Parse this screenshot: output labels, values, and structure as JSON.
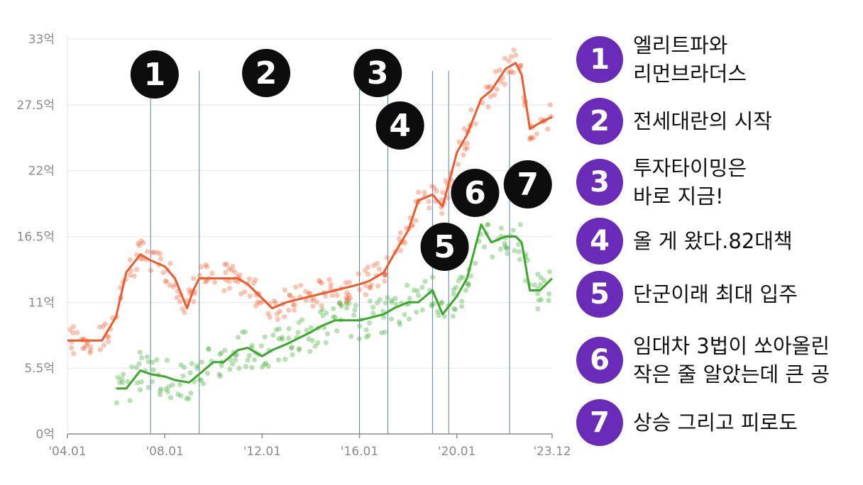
{
  "chart_data": {
    "type": "line",
    "x_ticks": [
      "'04.01",
      "'08.01",
      "'12.01",
      "'16.01",
      "'20.01",
      "'23.12"
    ],
    "y_ticks": [
      "0억",
      "5.5억",
      "11억",
      "16.5억",
      "22억",
      "27.5억",
      "33억"
    ],
    "ylim": [
      0,
      33
    ],
    "xlim": [
      "2004-01",
      "2023-12"
    ],
    "grid": true,
    "series": [
      {
        "color": "#f05a2a",
        "x": [
          "2004-01",
          "2005-06",
          "2006-01",
          "2006-06",
          "2007-01",
          "2007-06",
          "2008-01",
          "2008-06",
          "2008-12",
          "2009-03",
          "2009-06",
          "2010-01",
          "2011-01",
          "2011-06",
          "2012-06",
          "2013-01",
          "2014-01",
          "2015-01",
          "2016-01",
          "2016-06",
          "2017-01",
          "2017-06",
          "2018-01",
          "2018-06",
          "2019-01",
          "2019-06",
          "2020-01",
          "2020-06",
          "2021-01",
          "2021-06",
          "2022-01",
          "2022-06",
          "2022-09",
          "2023-01",
          "2023-06",
          "2023-12"
        ],
        "values": [
          7.8,
          7.8,
          9.8,
          13.5,
          15.0,
          14.5,
          14.0,
          13.0,
          10.5,
          12.0,
          13.0,
          13.0,
          13.0,
          12.5,
          10.5,
          11.0,
          11.5,
          12.0,
          12.5,
          12.8,
          13.5,
          15.0,
          17.0,
          19.5,
          20.0,
          19.0,
          23.5,
          25.0,
          28.0,
          28.7,
          30.5,
          31.0,
          30.0,
          25.5,
          26.0,
          26.5
        ]
      },
      {
        "color": "#3aa82a",
        "x": [
          "2006-01",
          "2006-06",
          "2007-01",
          "2007-06",
          "2008-01",
          "2008-06",
          "2009-01",
          "2009-06",
          "2010-01",
          "2010-06",
          "2011-01",
          "2011-06",
          "2012-01",
          "2012-06",
          "2013-01",
          "2014-01",
          "2014-06",
          "2015-01",
          "2016-01",
          "2016-06",
          "2017-01",
          "2017-06",
          "2018-01",
          "2018-06",
          "2019-01",
          "2019-06",
          "2020-01",
          "2020-06",
          "2021-01",
          "2021-06",
          "2022-01",
          "2022-06",
          "2022-09",
          "2023-01",
          "2023-06",
          "2023-12"
        ],
        "values": [
          3.8,
          3.8,
          5.3,
          5.0,
          4.8,
          4.5,
          4.3,
          5.0,
          6.0,
          6.0,
          7.0,
          7.2,
          6.5,
          7.0,
          7.5,
          8.5,
          9.0,
          9.5,
          9.5,
          9.7,
          10.0,
          10.5,
          11.0,
          11.0,
          12.0,
          10.0,
          11.5,
          13.0,
          17.5,
          16.0,
          16.5,
          16.5,
          16.0,
          12.0,
          12.0,
          13.0
        ]
      }
    ],
    "events": [
      {
        "number": "1",
        "text_lines": [
          "엘리트파와",
          "리먼브라더스"
        ]
      },
      {
        "number": "2",
        "text_lines": [
          "전세대란의 시작"
        ]
      },
      {
        "number": "3",
        "text_lines": [
          "투자타이밍은",
          "바로 지금!"
        ]
      },
      {
        "number": "4",
        "text_lines": [
          "올 게 왔다.82대책"
        ]
      },
      {
        "number": "5",
        "text_lines": [
          "단군이래 최대 입주"
        ]
      },
      {
        "number": "6",
        "text_lines": [
          "임대차 3법이 쏘아올린",
          "작은 줄 알았는데 큰 공"
        ]
      },
      {
        "number": "7",
        "text_lines": [
          "상승 그리고 피로도"
        ]
      }
    ],
    "event_markers": [
      {
        "number": "1",
        "x": "2007-08"
      },
      {
        "number": "2",
        "x": "2012-03"
      },
      {
        "number": "3",
        "x": "2016-10"
      },
      {
        "number": "4",
        "x": "2017-09"
      },
      {
        "number": "5",
        "x": "2019-07"
      },
      {
        "number": "6",
        "x": "2020-10"
      },
      {
        "number": "7",
        "x": "2022-12"
      }
    ],
    "event_lines": [
      "2007-06",
      "2009-06",
      "2016-01",
      "2017-03",
      "2019-01",
      "2019-09",
      "2022-03"
    ]
  }
}
